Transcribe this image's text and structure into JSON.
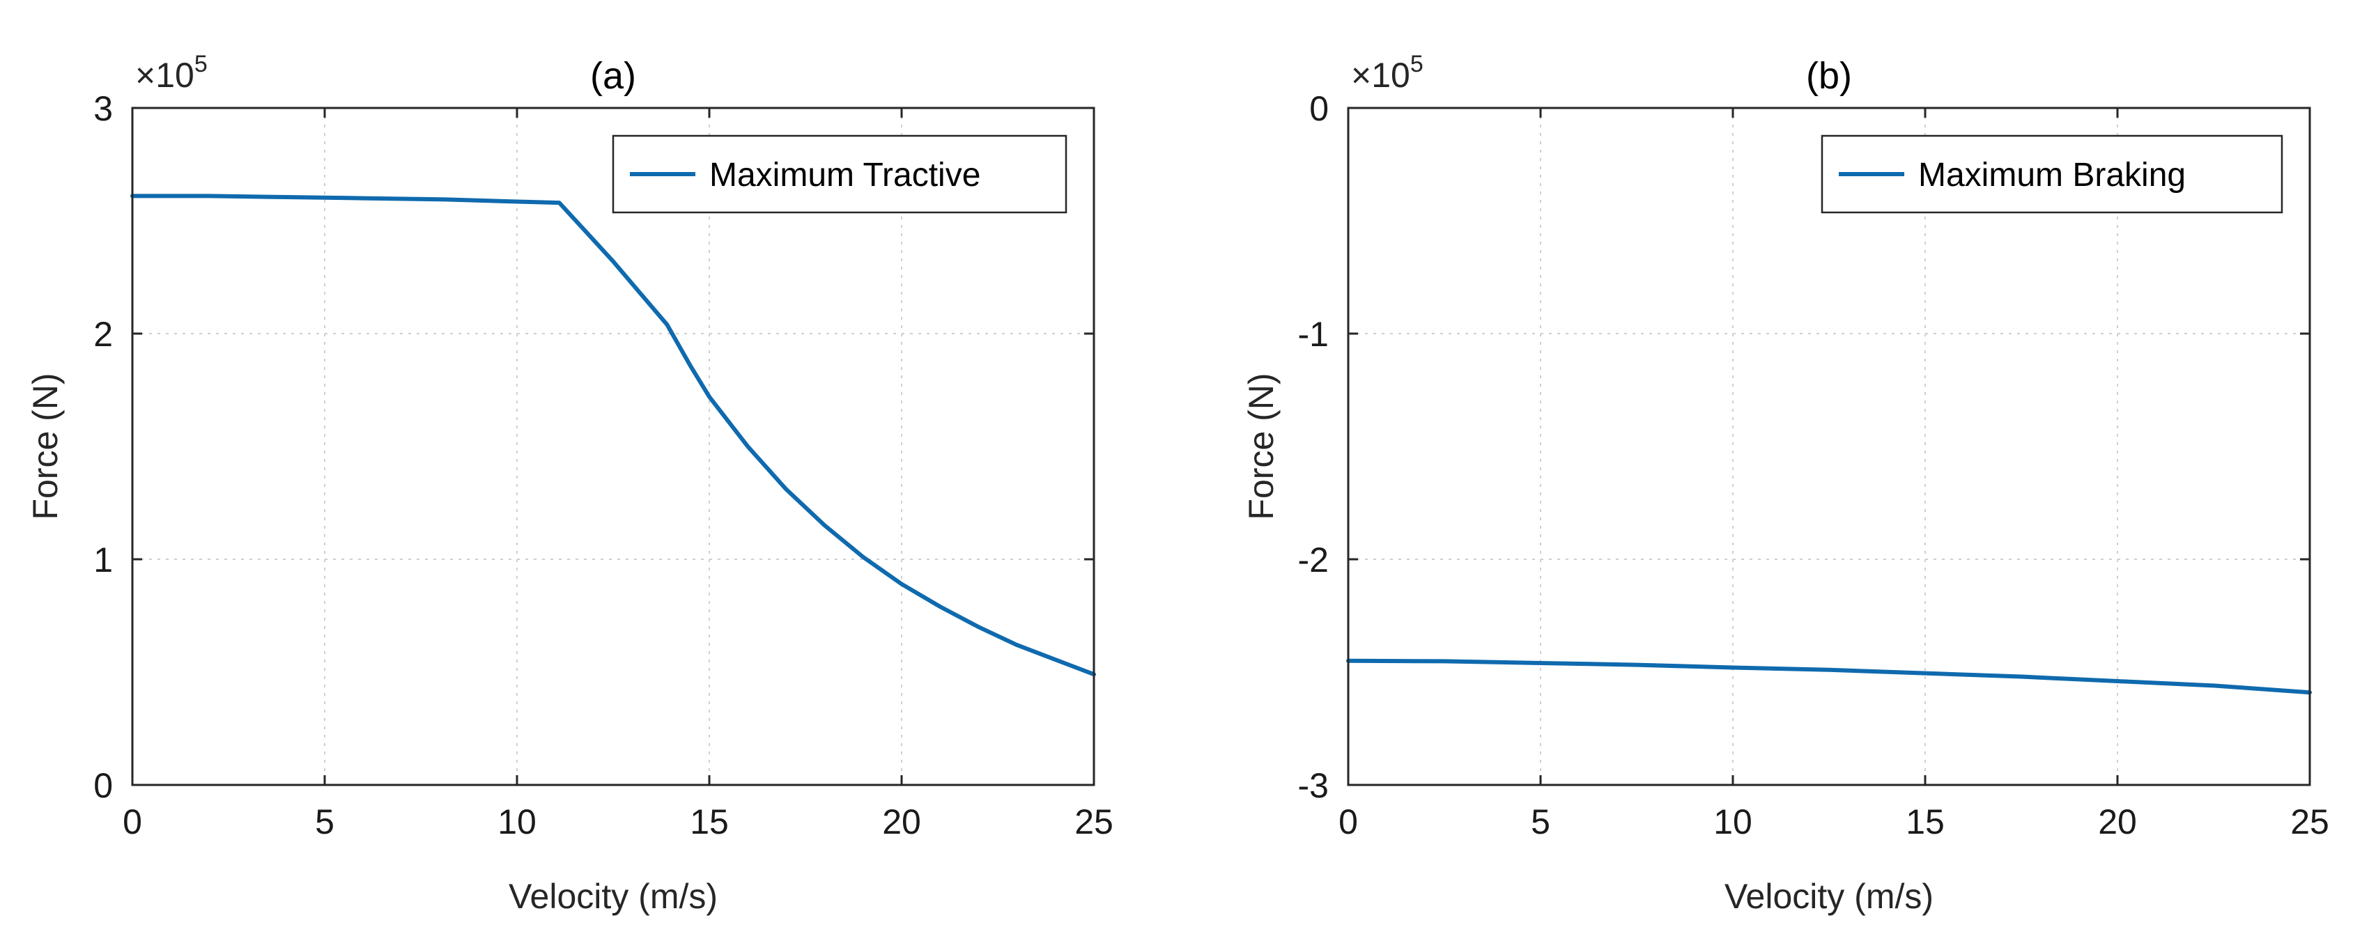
{
  "chart_data": [
    {
      "id": "a",
      "type": "line",
      "title": "(a)",
      "xlabel": "Velocity (m/s)",
      "ylabel": "Force (N)",
      "y_exponent_label": "×10",
      "y_exponent_power": "5",
      "xlim": [
        0,
        25
      ],
      "ylim": [
        0,
        3
      ],
      "xticks": [
        0,
        5,
        10,
        15,
        20,
        25
      ],
      "xtick_labels": [
        "0",
        "5",
        "10",
        "15",
        "20",
        "25"
      ],
      "yticks": [
        0,
        1,
        2,
        3
      ],
      "ytick_labels": [
        "0",
        "1",
        "2",
        "3"
      ],
      "grid": true,
      "legend_position": "top-right",
      "series": [
        {
          "name": "Maximum Tractive",
          "color": "#0f6aae",
          "x": [
            0,
            2,
            4,
            6,
            8,
            10,
            11.1,
            11.8,
            12.5,
            13.2,
            13.9,
            14.5,
            15,
            16,
            17,
            18,
            19,
            20,
            21,
            22,
            23,
            24,
            25
          ],
          "y": [
            2.61,
            2.61,
            2.605,
            2.6,
            2.595,
            2.585,
            2.58,
            2.45,
            2.32,
            2.18,
            2.04,
            1.86,
            1.72,
            1.5,
            1.31,
            1.15,
            1.01,
            0.89,
            0.79,
            0.7,
            0.62,
            0.555,
            0.49
          ]
        }
      ]
    },
    {
      "id": "b",
      "type": "line",
      "title": "(b)",
      "xlabel": "Velocity (m/s)",
      "ylabel": "Force (N)",
      "y_exponent_label": "×10",
      "y_exponent_power": "5",
      "xlim": [
        0,
        25
      ],
      "ylim": [
        -3,
        0
      ],
      "xticks": [
        0,
        5,
        10,
        15,
        20,
        25
      ],
      "xtick_labels": [
        "0",
        "5",
        "10",
        "15",
        "20",
        "25"
      ],
      "yticks": [
        -3,
        -2,
        -1,
        0
      ],
      "ytick_labels": [
        "-3",
        "-2",
        "-1",
        "0"
      ],
      "grid": true,
      "legend_position": "top-right",
      "series": [
        {
          "name": "Maximum Braking",
          "color": "#0f6aae",
          "x": [
            0,
            2.5,
            5,
            7.5,
            10,
            12.5,
            15,
            17.5,
            20,
            22.5,
            25
          ],
          "y": [
            -2.45,
            -2.452,
            -2.46,
            -2.468,
            -2.48,
            -2.49,
            -2.505,
            -2.52,
            -2.54,
            -2.56,
            -2.59
          ]
        }
      ]
    }
  ]
}
